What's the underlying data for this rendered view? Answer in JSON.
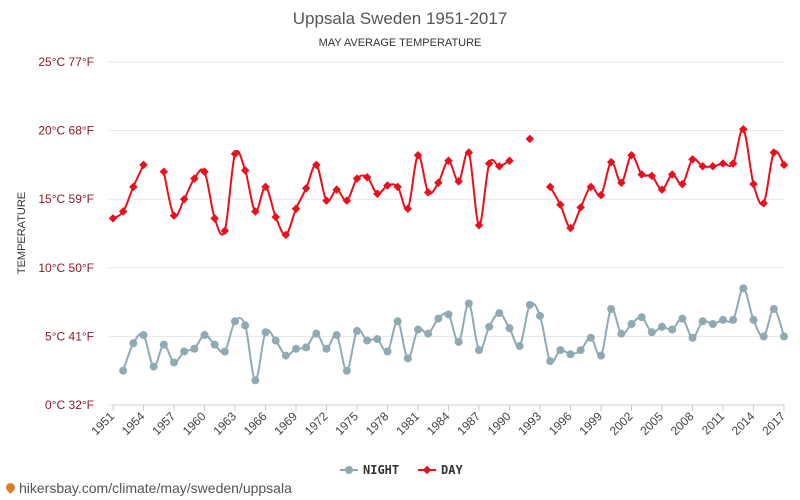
{
  "chart_data": {
    "type": "line",
    "title": "Uppsala Sweden 1951-2017",
    "subtitle": "MAY AVERAGE TEMPERATURE",
    "ylabel": "TEMPERATURE",
    "ylim": [
      0,
      25
    ],
    "y_ticks": [
      {
        "value": 0,
        "label": "0°C 32°F"
      },
      {
        "value": 5,
        "label": "5°C 41°F"
      },
      {
        "value": 10,
        "label": "10°C 50°F"
      },
      {
        "value": 15,
        "label": "15°C 59°F"
      },
      {
        "value": 20,
        "label": "20°C 68°F"
      },
      {
        "value": 25,
        "label": "25°C 77°F"
      }
    ],
    "x_ticks": [
      "1951",
      "1954",
      "1957",
      "1960",
      "1963",
      "1966",
      "1969",
      "1972",
      "1975",
      "1978",
      "1981",
      "1984",
      "1987",
      "1990",
      "1993",
      "1996",
      "1999",
      "2002",
      "2005",
      "2008",
      "2011",
      "2014",
      "2017"
    ],
    "x": [
      1951,
      1952,
      1953,
      1954,
      1955,
      1956,
      1957,
      1958,
      1959,
      1960,
      1961,
      1962,
      1963,
      1964,
      1965,
      1966,
      1967,
      1968,
      1969,
      1970,
      1971,
      1972,
      1973,
      1974,
      1975,
      1976,
      1977,
      1978,
      1979,
      1980,
      1981,
      1982,
      1983,
      1984,
      1985,
      1986,
      1987,
      1988,
      1989,
      1990,
      1991,
      1992,
      1993,
      1994,
      1995,
      1996,
      1997,
      1998,
      1999,
      2000,
      2001,
      2002,
      2003,
      2004,
      2005,
      2006,
      2007,
      2008,
      2009,
      2010,
      2011,
      2012,
      2013,
      2014,
      2015,
      2016,
      2017
    ],
    "grid": "horizontal",
    "legend_position": "bottom-center",
    "series": [
      {
        "name": "NIGHT",
        "color": "#90aab4",
        "marker": "circle",
        "values": [
          null,
          2.5,
          4.5,
          5.1,
          2.8,
          4.4,
          3.1,
          3.9,
          4.1,
          5.1,
          4.4,
          3.9,
          6.1,
          5.8,
          1.8,
          5.3,
          4.7,
          3.6,
          4.1,
          4.2,
          5.2,
          4.1,
          5.1,
          2.5,
          5.4,
          4.7,
          4.8,
          3.9,
          6.1,
          3.4,
          5.5,
          5.2,
          6.3,
          6.6,
          4.6,
          7.4,
          4.0,
          5.7,
          6.7,
          5.6,
          4.3,
          7.3,
          6.5,
          3.2,
          4.0,
          3.7,
          4.0,
          4.9,
          3.6,
          7.0,
          5.2,
          5.9,
          6.4,
          5.3,
          5.7,
          5.5,
          6.3,
          4.9,
          6.1,
          5.9,
          6.2,
          6.2,
          8.5,
          6.2,
          5.0,
          7.0,
          5.0
        ]
      },
      {
        "name": "DAY",
        "color": "#e8101e",
        "marker": "diamond",
        "values": [
          13.6,
          14.1,
          15.9,
          17.5,
          null,
          17.0,
          13.8,
          15.0,
          16.5,
          17.0,
          13.6,
          12.7,
          18.3,
          17.1,
          14.1,
          15.9,
          13.7,
          12.4,
          14.3,
          15.8,
          17.5,
          14.9,
          15.7,
          14.9,
          16.5,
          16.6,
          15.4,
          16.0,
          15.9,
          14.3,
          18.2,
          15.5,
          16.2,
          17.8,
          16.3,
          18.4,
          13.1,
          17.6,
          17.4,
          17.8,
          null,
          19.4,
          null,
          15.9,
          14.6,
          12.9,
          14.4,
          15.9,
          15.3,
          17.7,
          16.2,
          18.2,
          16.8,
          16.7,
          15.7,
          16.8,
          16.1,
          17.9,
          17.4,
          17.4,
          17.6,
          17.6,
          20.1,
          16.1,
          14.7,
          18.4,
          17.5
        ]
      }
    ]
  },
  "source": {
    "text": "hikersbay.com/climate/may/sweden/uppsala",
    "icon": "location-pin-icon"
  }
}
